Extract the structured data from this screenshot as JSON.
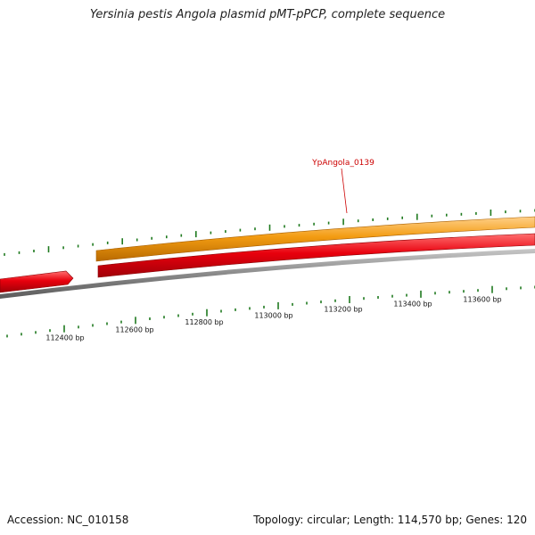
{
  "title": "Yersinia pestis Angola plasmid pMT-pPCP, complete sequence",
  "footer": {
    "accession": "Accession: NC_010158",
    "summary": "Topology: circular; Length: 114,570 bp; Genes: 120"
  },
  "map": {
    "ruler_labels": [
      "112400 bp",
      "112600 bp",
      "112800 bp",
      "113000 bp",
      "113200 bp",
      "113400 bp",
      "113600 bp"
    ],
    "gene_label": "YpAngola_0139",
    "colors": {
      "forward_feature": "#f39c12",
      "reverse_feature": "#e8000d",
      "backbone": "#888888",
      "tick": "#1f7a1f",
      "gene_label": "#cc0000"
    }
  }
}
